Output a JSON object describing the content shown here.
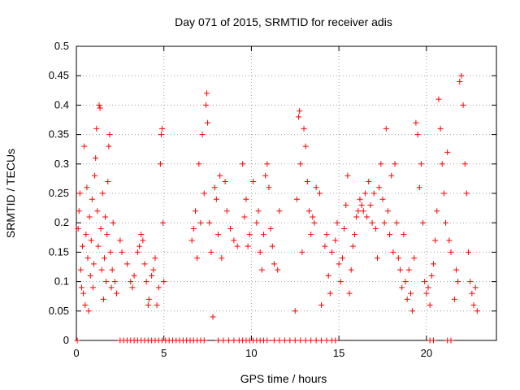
{
  "chart_data": {
    "type": "scatter",
    "title": "Day 071 of 2015, SRMTID for receiver adis",
    "xlabel": "GPS time / hours",
    "ylabel": "SRMTID / TECUs",
    "xlim": [
      0,
      24
    ],
    "ylim": [
      0,
      0.5
    ],
    "x_ticks": [
      0,
      5,
      10,
      15,
      20
    ],
    "x_tick_labels": [
      "0",
      "5",
      "10",
      "15",
      "20"
    ],
    "y_ticks": [
      0,
      0.05,
      0.1,
      0.15,
      0.2,
      0.25,
      0.3,
      0.35,
      0.4,
      0.45,
      0.5
    ],
    "y_tick_labels": [
      "0",
      "0.05",
      "0.1",
      "0.15",
      "0.2",
      "0.25",
      "0.3",
      "0.35",
      "0.4",
      "0.45",
      "0.5"
    ],
    "grid": true,
    "marker": "+",
    "color": "#ff0000",
    "series": [
      {
        "name": "SRMTID",
        "points": [
          [
            0.1,
            0.19
          ],
          [
            0.15,
            0.22
          ],
          [
            0.2,
            0.25
          ],
          [
            0.25,
            0.12
          ],
          [
            0.3,
            0.09
          ],
          [
            0.35,
            0.16
          ],
          [
            0.4,
            0.08
          ],
          [
            0.45,
            0.33
          ],
          [
            0.5,
            0.06
          ],
          [
            0.55,
            0.18
          ],
          [
            0.6,
            0.26
          ],
          [
            0.65,
            0.14
          ],
          [
            0.7,
            0.05
          ],
          [
            0.75,
            0.21
          ],
          [
            0.8,
            0.11
          ],
          [
            0.85,
            0.17
          ],
          [
            0.9,
            0.24
          ],
          [
            0.95,
            0.09
          ],
          [
            1.0,
            0.13
          ],
          [
            1.05,
            0.28
          ],
          [
            1.1,
            0.31
          ],
          [
            1.15,
            0.36
          ],
          [
            1.2,
            0.22
          ],
          [
            1.25,
            0.16
          ],
          [
            1.3,
            0.4
          ],
          [
            1.35,
            0.395
          ],
          [
            1.4,
            0.19
          ],
          [
            1.45,
            0.12
          ],
          [
            1.5,
            0.25
          ],
          [
            1.55,
            0.07
          ],
          [
            1.6,
            0.14
          ],
          [
            1.65,
            0.21
          ],
          [
            1.7,
            0.1
          ],
          [
            1.75,
            0.18
          ],
          [
            1.8,
            0.27
          ],
          [
            1.85,
            0.33
          ],
          [
            1.9,
            0.35
          ],
          [
            1.95,
            0.15
          ],
          [
            2.0,
            0.09
          ],
          [
            2.05,
            0.12
          ],
          [
            2.1,
            0.2
          ],
          [
            2.2,
            0.1
          ],
          [
            2.3,
            0.08
          ],
          [
            2.5,
            0.17
          ],
          [
            2.6,
            0.15
          ],
          [
            2.9,
            0.13
          ],
          [
            3.1,
            0.1
          ],
          [
            3.2,
            0.09
          ],
          [
            3.3,
            0.11
          ],
          [
            3.5,
            0.15
          ],
          [
            3.6,
            0.16
          ],
          [
            3.7,
            0.18
          ],
          [
            3.8,
            0.17
          ],
          [
            3.9,
            0.13
          ],
          [
            4.0,
            0.1
          ],
          [
            4.1,
            0.06
          ],
          [
            4.15,
            0.07
          ],
          [
            4.3,
            0.11
          ],
          [
            4.4,
            0.12
          ],
          [
            4.5,
            0.14
          ],
          [
            4.6,
            0.06
          ],
          [
            4.7,
            0.09
          ],
          [
            4.8,
            0.3
          ],
          [
            4.85,
            0.35
          ],
          [
            4.9,
            0.36
          ],
          [
            4.95,
            0.2
          ],
          [
            5.0,
            0.1
          ],
          [
            6.6,
            0.17
          ],
          [
            6.7,
            0.19
          ],
          [
            6.8,
            0.22
          ],
          [
            6.9,
            0.14
          ],
          [
            7.0,
            0.3
          ],
          [
            7.1,
            0.2
          ],
          [
            7.2,
            0.35
          ],
          [
            7.3,
            0.25
          ],
          [
            7.4,
            0.4
          ],
          [
            7.45,
            0.42
          ],
          [
            7.5,
            0.37
          ],
          [
            7.6,
            0.2
          ],
          [
            7.7,
            0.15
          ],
          [
            7.8,
            0.04
          ],
          [
            7.9,
            0.26
          ],
          [
            8.0,
            0.24
          ],
          [
            8.1,
            0.18
          ],
          [
            8.2,
            0.28
          ],
          [
            8.3,
            0.14
          ],
          [
            8.5,
            0.27
          ],
          [
            8.6,
            0.22
          ],
          [
            8.8,
            0.19
          ],
          [
            9.0,
            0.17
          ],
          [
            9.2,
            0.16
          ],
          [
            9.5,
            0.3
          ],
          [
            9.6,
            0.21
          ],
          [
            9.7,
            0.24
          ],
          [
            9.8,
            0.16
          ],
          [
            9.9,
            0.18
          ],
          [
            10.1,
            0.27
          ],
          [
            10.3,
            0.2
          ],
          [
            10.4,
            0.22
          ],
          [
            10.5,
            0.15
          ],
          [
            10.6,
            0.12
          ],
          [
            10.7,
            0.18
          ],
          [
            10.8,
            0.28
          ],
          [
            10.9,
            0.3
          ],
          [
            11.0,
            0.26
          ],
          [
            11.1,
            0.19
          ],
          [
            11.2,
            0.16
          ],
          [
            11.3,
            0.13
          ],
          [
            11.5,
            0.12
          ],
          [
            11.6,
            0.22
          ],
          [
            12.5,
            0.05
          ],
          [
            12.6,
            0.24
          ],
          [
            12.7,
            0.38
          ],
          [
            12.75,
            0.39
          ],
          [
            12.8,
            0.3
          ],
          [
            12.9,
            0.15
          ],
          [
            13.0,
            0.36
          ],
          [
            13.1,
            0.33
          ],
          [
            13.2,
            0.27
          ],
          [
            13.3,
            0.22
          ],
          [
            13.4,
            0.18
          ],
          [
            13.5,
            0.21
          ],
          [
            13.6,
            0.2
          ],
          [
            13.7,
            0.26
          ],
          [
            13.9,
            0.25
          ],
          [
            14.0,
            0.06
          ],
          [
            14.2,
            0.16
          ],
          [
            14.3,
            0.18
          ],
          [
            14.4,
            0.11
          ],
          [
            14.5,
            0.08
          ],
          [
            14.6,
            0.15
          ],
          [
            14.8,
            0.17
          ],
          [
            14.9,
            0.2
          ],
          [
            15.0,
            0.13
          ],
          [
            15.1,
            0.1
          ],
          [
            15.2,
            0.14
          ],
          [
            15.3,
            0.19
          ],
          [
            15.4,
            0.23
          ],
          [
            15.5,
            0.28
          ],
          [
            15.6,
            0.08
          ],
          [
            15.7,
            0.12
          ],
          [
            15.8,
            0.16
          ],
          [
            15.9,
            0.18
          ],
          [
            16.0,
            0.21
          ],
          [
            16.1,
            0.22
          ],
          [
            16.2,
            0.24
          ],
          [
            16.3,
            0.23
          ],
          [
            16.4,
            0.22
          ],
          [
            16.5,
            0.25
          ],
          [
            16.6,
            0.21
          ],
          [
            16.7,
            0.27
          ],
          [
            16.8,
            0.23
          ],
          [
            16.9,
            0.2
          ],
          [
            17.0,
            0.25
          ],
          [
            17.1,
            0.19
          ],
          [
            17.2,
            0.14
          ],
          [
            17.3,
            0.26
          ],
          [
            17.4,
            0.3
          ],
          [
            17.5,
            0.24
          ],
          [
            17.6,
            0.2
          ],
          [
            17.7,
            0.36
          ],
          [
            17.8,
            0.22
          ],
          [
            17.9,
            0.18
          ],
          [
            18.0,
            0.28
          ],
          [
            18.1,
            0.15
          ],
          [
            18.2,
            0.3
          ],
          [
            18.3,
            0.2
          ],
          [
            18.4,
            0.14
          ],
          [
            18.5,
            0.12
          ],
          [
            18.6,
            0.09
          ],
          [
            18.7,
            0.18
          ],
          [
            18.8,
            0.1
          ],
          [
            18.9,
            0.07
          ],
          [
            19.0,
            0.12
          ],
          [
            19.1,
            0.08
          ],
          [
            19.2,
            0.05
          ],
          [
            19.3,
            0.14
          ],
          [
            19.4,
            0.37
          ],
          [
            19.5,
            0.35
          ],
          [
            19.6,
            0.26
          ],
          [
            19.7,
            0.3
          ],
          [
            19.8,
            0.2
          ],
          [
            19.9,
            0.1
          ],
          [
            20.0,
            0.08
          ],
          [
            20.1,
            0.09
          ],
          [
            20.2,
            0.06
          ],
          [
            20.3,
            0.11
          ],
          [
            20.4,
            0.13
          ],
          [
            20.5,
            0.17
          ],
          [
            20.6,
            0.22
          ],
          [
            20.7,
            0.41
          ],
          [
            20.8,
            0.36
          ],
          [
            20.9,
            0.3
          ],
          [
            21.0,
            0.25
          ],
          [
            21.1,
            0.2
          ],
          [
            21.2,
            0.32
          ],
          [
            21.3,
            0.17
          ],
          [
            21.4,
            0.15
          ],
          [
            21.6,
            0.07
          ],
          [
            21.7,
            0.12
          ],
          [
            21.8,
            0.1
          ],
          [
            21.9,
            0.44
          ],
          [
            22.0,
            0.45
          ],
          [
            22.1,
            0.4
          ],
          [
            22.2,
            0.3
          ],
          [
            22.3,
            0.25
          ],
          [
            22.4,
            0.15
          ],
          [
            22.5,
            0.1
          ],
          [
            22.6,
            0.08
          ],
          [
            22.7,
            0.06
          ],
          [
            22.8,
            0.09
          ],
          [
            22.9,
            0.05
          ]
        ],
        "zero_points": [
          0.05,
          2.5,
          2.7,
          2.9,
          3.1,
          3.3,
          3.5,
          3.7,
          3.9,
          4.1,
          4.3,
          4.5,
          4.7,
          4.9,
          5.1,
          5.3,
          5.5,
          5.7,
          5.9,
          6.1,
          6.3,
          6.5,
          6.7,
          6.9,
          7.1,
          7.3,
          8.1,
          8.4,
          8.7,
          9.0,
          9.3,
          9.5,
          9.7,
          9.9,
          10.1,
          10.3,
          10.5,
          10.7,
          10.9,
          11.3,
          11.6,
          11.9,
          12.2,
          12.5,
          12.8,
          13.1,
          13.4,
          13.7,
          14.0,
          14.3,
          14.6,
          14.8,
          20.2,
          20.4,
          21.2,
          21.4
        ]
      }
    ]
  }
}
